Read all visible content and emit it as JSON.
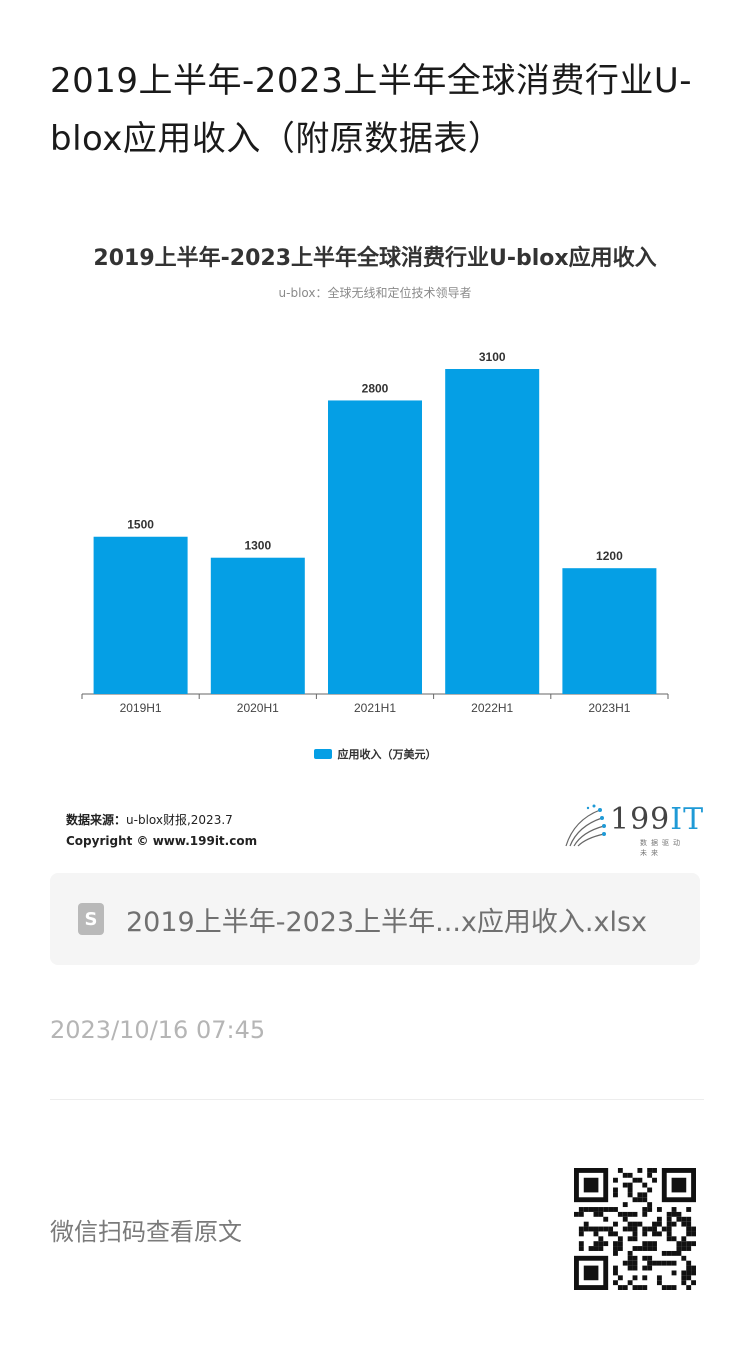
{
  "article": {
    "title": "2019上半年-2023上半年全球消费行业U-blox应用收入（附原数据表）",
    "file_name": "2019上半年-2023上半年...x应用收入.xlsx",
    "file_icon_letter": "S",
    "timestamp": "2023/10/16 07:45",
    "scan_text": "微信扫码查看原文"
  },
  "chart_data": {
    "type": "bar",
    "title": "2019上半年-2023上半年全球消费行业U-blox应用收入",
    "subtitle": "u-blox：全球无线和定位技术领导者",
    "categories": [
      "2019H1",
      "2020H1",
      "2021H1",
      "2022H1",
      "2023H1"
    ],
    "series": [
      {
        "name": "应用收入（万美元）",
        "values": [
          1500,
          1300,
          2800,
          3100,
          1200
        ]
      }
    ],
    "ylim": [
      0,
      3100
    ],
    "grid": false,
    "legend_position": "bottom",
    "bar_color": "#059fe5"
  },
  "footer": {
    "source_label": "数据来源：",
    "source_value": "u-blox财报,2023.7",
    "copyright": "Copyright © www.199it.com",
    "brand_num": "199",
    "brand_it": "IT",
    "brand_slogan": "数据驱动未来"
  }
}
